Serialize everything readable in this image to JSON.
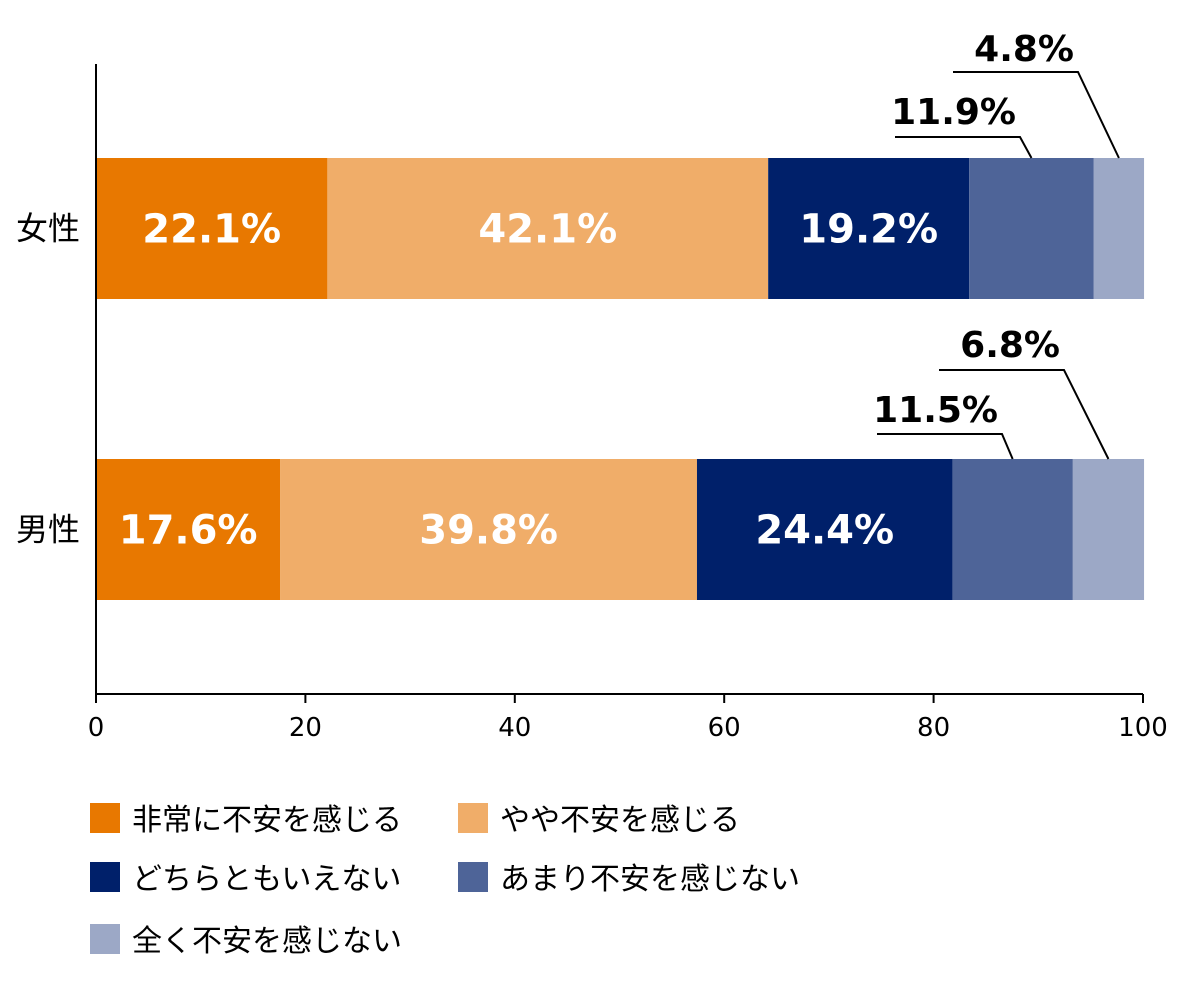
{
  "chart_data": {
    "type": "bar",
    "orientation": "horizontal",
    "stacked": true,
    "categories": [
      "女性",
      "男性"
    ],
    "series": [
      {
        "name": "非常に不安を感じる",
        "values": [
          22.1,
          17.6
        ],
        "labels": [
          "22.1%",
          "17.6%"
        ],
        "color": "#E87800",
        "label_position": "inside"
      },
      {
        "name": "やや不安を感じる",
        "values": [
          42.1,
          39.8
        ],
        "labels": [
          "42.1%",
          "39.8%"
        ],
        "color": "#F0AD69",
        "label_position": "inside"
      },
      {
        "name": "どちらともいえない",
        "values": [
          19.2,
          24.4
        ],
        "labels": [
          "19.2%",
          "24.4%"
        ],
        "color": "#00206A",
        "label_position": "inside"
      },
      {
        "name": "あまり不安を感じない",
        "values": [
          11.9,
          11.5
        ],
        "labels": [
          "11.9%",
          "11.5%"
        ],
        "color": "#4E6498",
        "label_position": "callout"
      },
      {
        "name": "全く不安を感じない",
        "values": [
          4.8,
          6.8
        ],
        "labels": [
          "4.8%",
          "6.8%"
        ],
        "color": "#9CA8C6",
        "label_position": "callout"
      }
    ],
    "xlim": [
      0,
      100
    ],
    "xticks": [
      0,
      20,
      40,
      60,
      80,
      100
    ],
    "xtick_labels": [
      "0",
      "20",
      "40",
      "60",
      "80",
      "100"
    ],
    "grid": false,
    "legend_position": "bottom",
    "title": "",
    "xlabel": "",
    "ylabel": ""
  }
}
